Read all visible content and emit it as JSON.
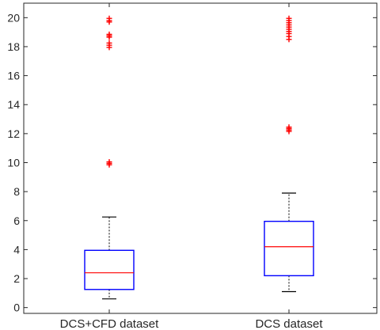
{
  "chart_data": {
    "type": "box",
    "title": "",
    "xlabel": "",
    "ylabel": "",
    "ylim": [
      -0.4,
      21
    ],
    "yticks": [
      0,
      2,
      4,
      6,
      8,
      10,
      12,
      14,
      16,
      18,
      20
    ],
    "categories": [
      "DCS+CFD dataset",
      "DCS dataset"
    ],
    "boxes": [
      {
        "name": "DCS+CFD dataset",
        "whisker_low": 0.6,
        "q1": 1.25,
        "median": 2.4,
        "q3": 3.95,
        "whisker_high": 6.25,
        "outliers": [
          9.85,
          9.95,
          10.05,
          17.95,
          18.1,
          18.25,
          18.65,
          18.75,
          18.85,
          19.7,
          19.8,
          19.95
        ]
      },
      {
        "name": "DCS dataset",
        "whisker_low": 1.1,
        "q1": 2.2,
        "median": 4.2,
        "q3": 5.95,
        "whisker_high": 7.9,
        "outliers": [
          12.15,
          12.25,
          12.35,
          12.45,
          18.5,
          18.7,
          18.9,
          19.05,
          19.2,
          19.35,
          19.5,
          19.65,
          19.8,
          19.95
        ]
      }
    ],
    "grid": false,
    "colors": {
      "box": "#0000ff",
      "median": "#ff0000",
      "whisker": "#000000",
      "outlier": "#ff0000",
      "axes": "#262626"
    }
  }
}
